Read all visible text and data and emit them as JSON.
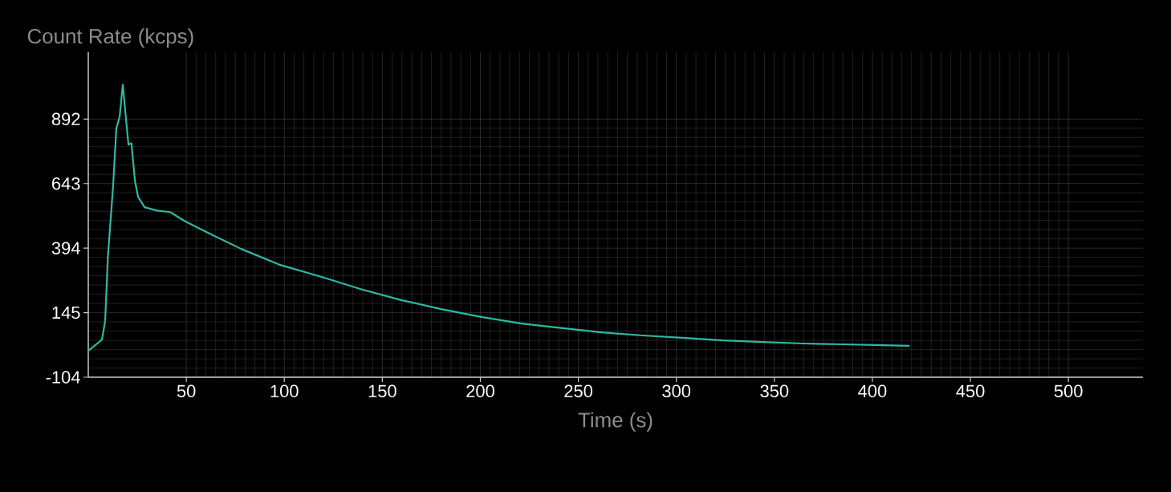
{
  "chart_data": {
    "type": "line",
    "xlabel": "Time (s)",
    "ylabel": "Count Rate (kcps)",
    "x": [
      0,
      7,
      8.6,
      10,
      12.7,
      14.3,
      16,
      17.6,
      19.7,
      20.5,
      22,
      23.8,
      25.4,
      28.7,
      35,
      41.8,
      49,
      61,
      78,
      98,
      119,
      139,
      160,
      180,
      201,
      221,
      242,
      262,
      283,
      303,
      324,
      344,
      365,
      385,
      401,
      419
    ],
    "series": [
      {
        "color": "#2fb8a0",
        "values": [
          -2,
          41,
          113,
          360,
          638,
          855,
          901,
          1025,
          855,
          793,
          799,
          654,
          592,
          552,
          539,
          533,
          499,
          453,
          391,
          329,
          283,
          236,
          193,
          159,
          128,
          103,
          85,
          69,
          57,
          48,
          38,
          32,
          26,
          23,
          20,
          17
        ]
      }
    ],
    "xlim": [
      0,
      538
    ],
    "ylim": [
      -104,
      1150
    ],
    "xticks": [
      50,
      100,
      150,
      200,
      250,
      300,
      350,
      400,
      450,
      500
    ],
    "yticks": [
      -104,
      145,
      394,
      643,
      892
    ],
    "grid": true
  }
}
